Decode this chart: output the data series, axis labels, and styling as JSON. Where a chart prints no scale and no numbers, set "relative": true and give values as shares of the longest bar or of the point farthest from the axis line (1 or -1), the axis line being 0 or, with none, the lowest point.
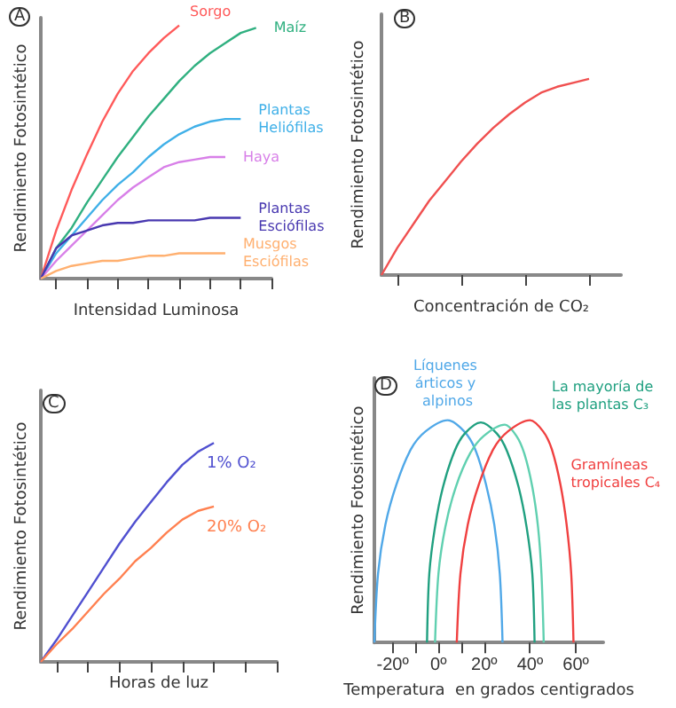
{
  "chart_data": [
    {
      "type": "line",
      "title": "A",
      "xlabel": "Intensidad Luminosa",
      "ylabel": "Rendimiento Fotosintético",
      "relative": true,
      "marker": "none",
      "tick_labels": false,
      "categories": [
        null,
        null,
        null,
        null,
        null,
        null,
        null,
        null,
        null,
        null,
        null,
        null,
        null,
        null,
        null,
        null
      ],
      "series": [
        {
          "name": "Sorgo",
          "color": "#ff5a5a",
          "values": [
            0,
            0.19,
            0.35,
            0.49,
            0.62,
            0.73,
            0.82,
            0.89,
            0.95,
            1,
            null,
            null,
            null,
            null,
            null,
            null
          ]
        },
        {
          "name": "Maíz",
          "color": "#30b080",
          "values": [
            0,
            0.12,
            0.2,
            0.3,
            0.39,
            0.48,
            0.56,
            0.64,
            0.71,
            0.78,
            0.84,
            0.89,
            0.93,
            0.97,
            0.99,
            null
          ]
        },
        {
          "name": "Plantas Heliófilas",
          "color": "#40b0e8",
          "values": [
            0,
            0.1,
            0.17,
            0.24,
            0.31,
            0.37,
            0.42,
            0.48,
            0.53,
            0.57,
            0.6,
            0.62,
            0.63,
            0.63,
            null,
            null
          ]
        },
        {
          "name": "Haya",
          "color": "#d880e8",
          "values": [
            0,
            0.07,
            0.13,
            0.19,
            0.25,
            0.31,
            0.36,
            0.4,
            0.44,
            0.46,
            0.47,
            0.48,
            0.48,
            null,
            null,
            null
          ]
        },
        {
          "name": "Plantas Esciófilas",
          "color": "#4838b0",
          "values": [
            0,
            0.12,
            0.17,
            0.19,
            0.21,
            0.22,
            0.22,
            0.23,
            0.23,
            0.23,
            0.23,
            0.24,
            0.24,
            0.24,
            null,
            null
          ]
        },
        {
          "name": "Musgos Esciófilas",
          "color": "#ffb070",
          "values": [
            0,
            0.03,
            0.05,
            0.06,
            0.07,
            0.07,
            0.08,
            0.09,
            0.09,
            0.1,
            0.1,
            0.1,
            0.1,
            null,
            null,
            null
          ]
        }
      ]
    },
    {
      "type": "line",
      "title": "B",
      "xlabel": "Concentración de CO₂",
      "ylabel": "Rendimiento Fotosintético",
      "relative": true,
      "marker": "none",
      "tick_labels": false,
      "categories": [
        null,
        null,
        null,
        null,
        null,
        null,
        null,
        null,
        null,
        null,
        null,
        null,
        null,
        null,
        null,
        null
      ],
      "series": [
        {
          "color": "#f05050",
          "values": [
            0,
            0.14,
            0.26,
            0.38,
            0.48,
            0.58,
            0.67,
            0.75,
            0.82,
            0.88,
            0.93,
            0.96,
            0.98,
            1,
            null,
            null
          ]
        }
      ]
    },
    {
      "type": "line",
      "title": "C",
      "xlabel": "Horas de luz",
      "ylabel": "Rendimiento Fotosintético",
      "relative": true,
      "marker": "none",
      "tick_labels": false,
      "categories": [
        null,
        null,
        null,
        null,
        null,
        null,
        null,
        null,
        null,
        null,
        null,
        null,
        null,
        null,
        null,
        null
      ],
      "series": [
        {
          "name": "1% O₂",
          "color": "#5050d0",
          "values": [
            0,
            0.1,
            0.21,
            0.32,
            0.43,
            0.54,
            0.64,
            0.73,
            0.82,
            0.9,
            0.96,
            1,
            null,
            null,
            null,
            null
          ]
        },
        {
          "name": "20% O₂",
          "color": "#ff8050",
          "values": [
            0,
            0.08,
            0.15,
            0.23,
            0.31,
            0.38,
            0.46,
            0.52,
            0.59,
            0.65,
            0.69,
            0.71,
            null,
            null,
            null,
            null
          ]
        }
      ]
    },
    {
      "type": "line",
      "title": "D",
      "xlabel": "Temperatura  en grados centigrados",
      "ylabel": "Rendimiento Fotosintético",
      "relative": true,
      "marker": "none",
      "xlim": [
        -28,
        72
      ],
      "xticks": [
        {
          "value": -20,
          "label": "-20º"
        },
        {
          "value": -10,
          "label": null
        },
        {
          "value": 0,
          "label": "0º"
        },
        {
          "value": 10,
          "label": null
        },
        {
          "value": 20,
          "label": "20º"
        },
        {
          "value": 40,
          "label": "40º"
        },
        {
          "value": 60,
          "label": "60º"
        }
      ],
      "series": [
        {
          "name": "Líquenes árticos y alpinos",
          "color": "#50a8e8",
          "x": [
            -28,
            -26.4,
            -23.2,
            -18.4,
            -12,
            -5.6,
            4,
            11.2,
            16,
            20.8,
            24.4,
            26.8,
            28
          ],
          "values": [
            0,
            0.31,
            0.53,
            0.71,
            0.87,
            0.95,
            1,
            0.95,
            0.87,
            0.71,
            0.53,
            0.31,
            0
          ]
        },
        {
          "name": "La mayoría de las plantas C₃",
          "color": "#20a080",
          "x": [
            -5,
            -4,
            -1.5,
            2,
            7,
            11.5,
            18.5,
            25.5,
            30,
            35,
            38.5,
            41,
            42
          ],
          "values": [
            0,
            0.31,
            0.52,
            0.7,
            0.86,
            0.94,
            0.99,
            0.94,
            0.86,
            0.7,
            0.52,
            0.31,
            0
          ]
        },
        {
          "color": "#60d0b0",
          "x": [
            -1.5,
            0,
            3,
            7.6,
            13.8,
            19.9,
            29,
            34,
            37.5,
            41,
            43.5,
            45,
            46
          ],
          "values": [
            0,
            0.31,
            0.52,
            0.7,
            0.85,
            0.93,
            0.98,
            0.93,
            0.85,
            0.7,
            0.52,
            0.31,
            0
          ]
        },
        {
          "name": "Gramíneas tropicales C₄",
          "color": "#f04040",
          "x": [
            8,
            9.6,
            12.8,
            17.6,
            24,
            30.4,
            40,
            45.7,
            49.5,
            53.3,
            56,
            58,
            59
          ],
          "values": [
            0,
            0.31,
            0.53,
            0.71,
            0.87,
            0.95,
            1,
            0.95,
            0.87,
            0.71,
            0.53,
            0.31,
            0
          ]
        }
      ]
    }
  ]
}
